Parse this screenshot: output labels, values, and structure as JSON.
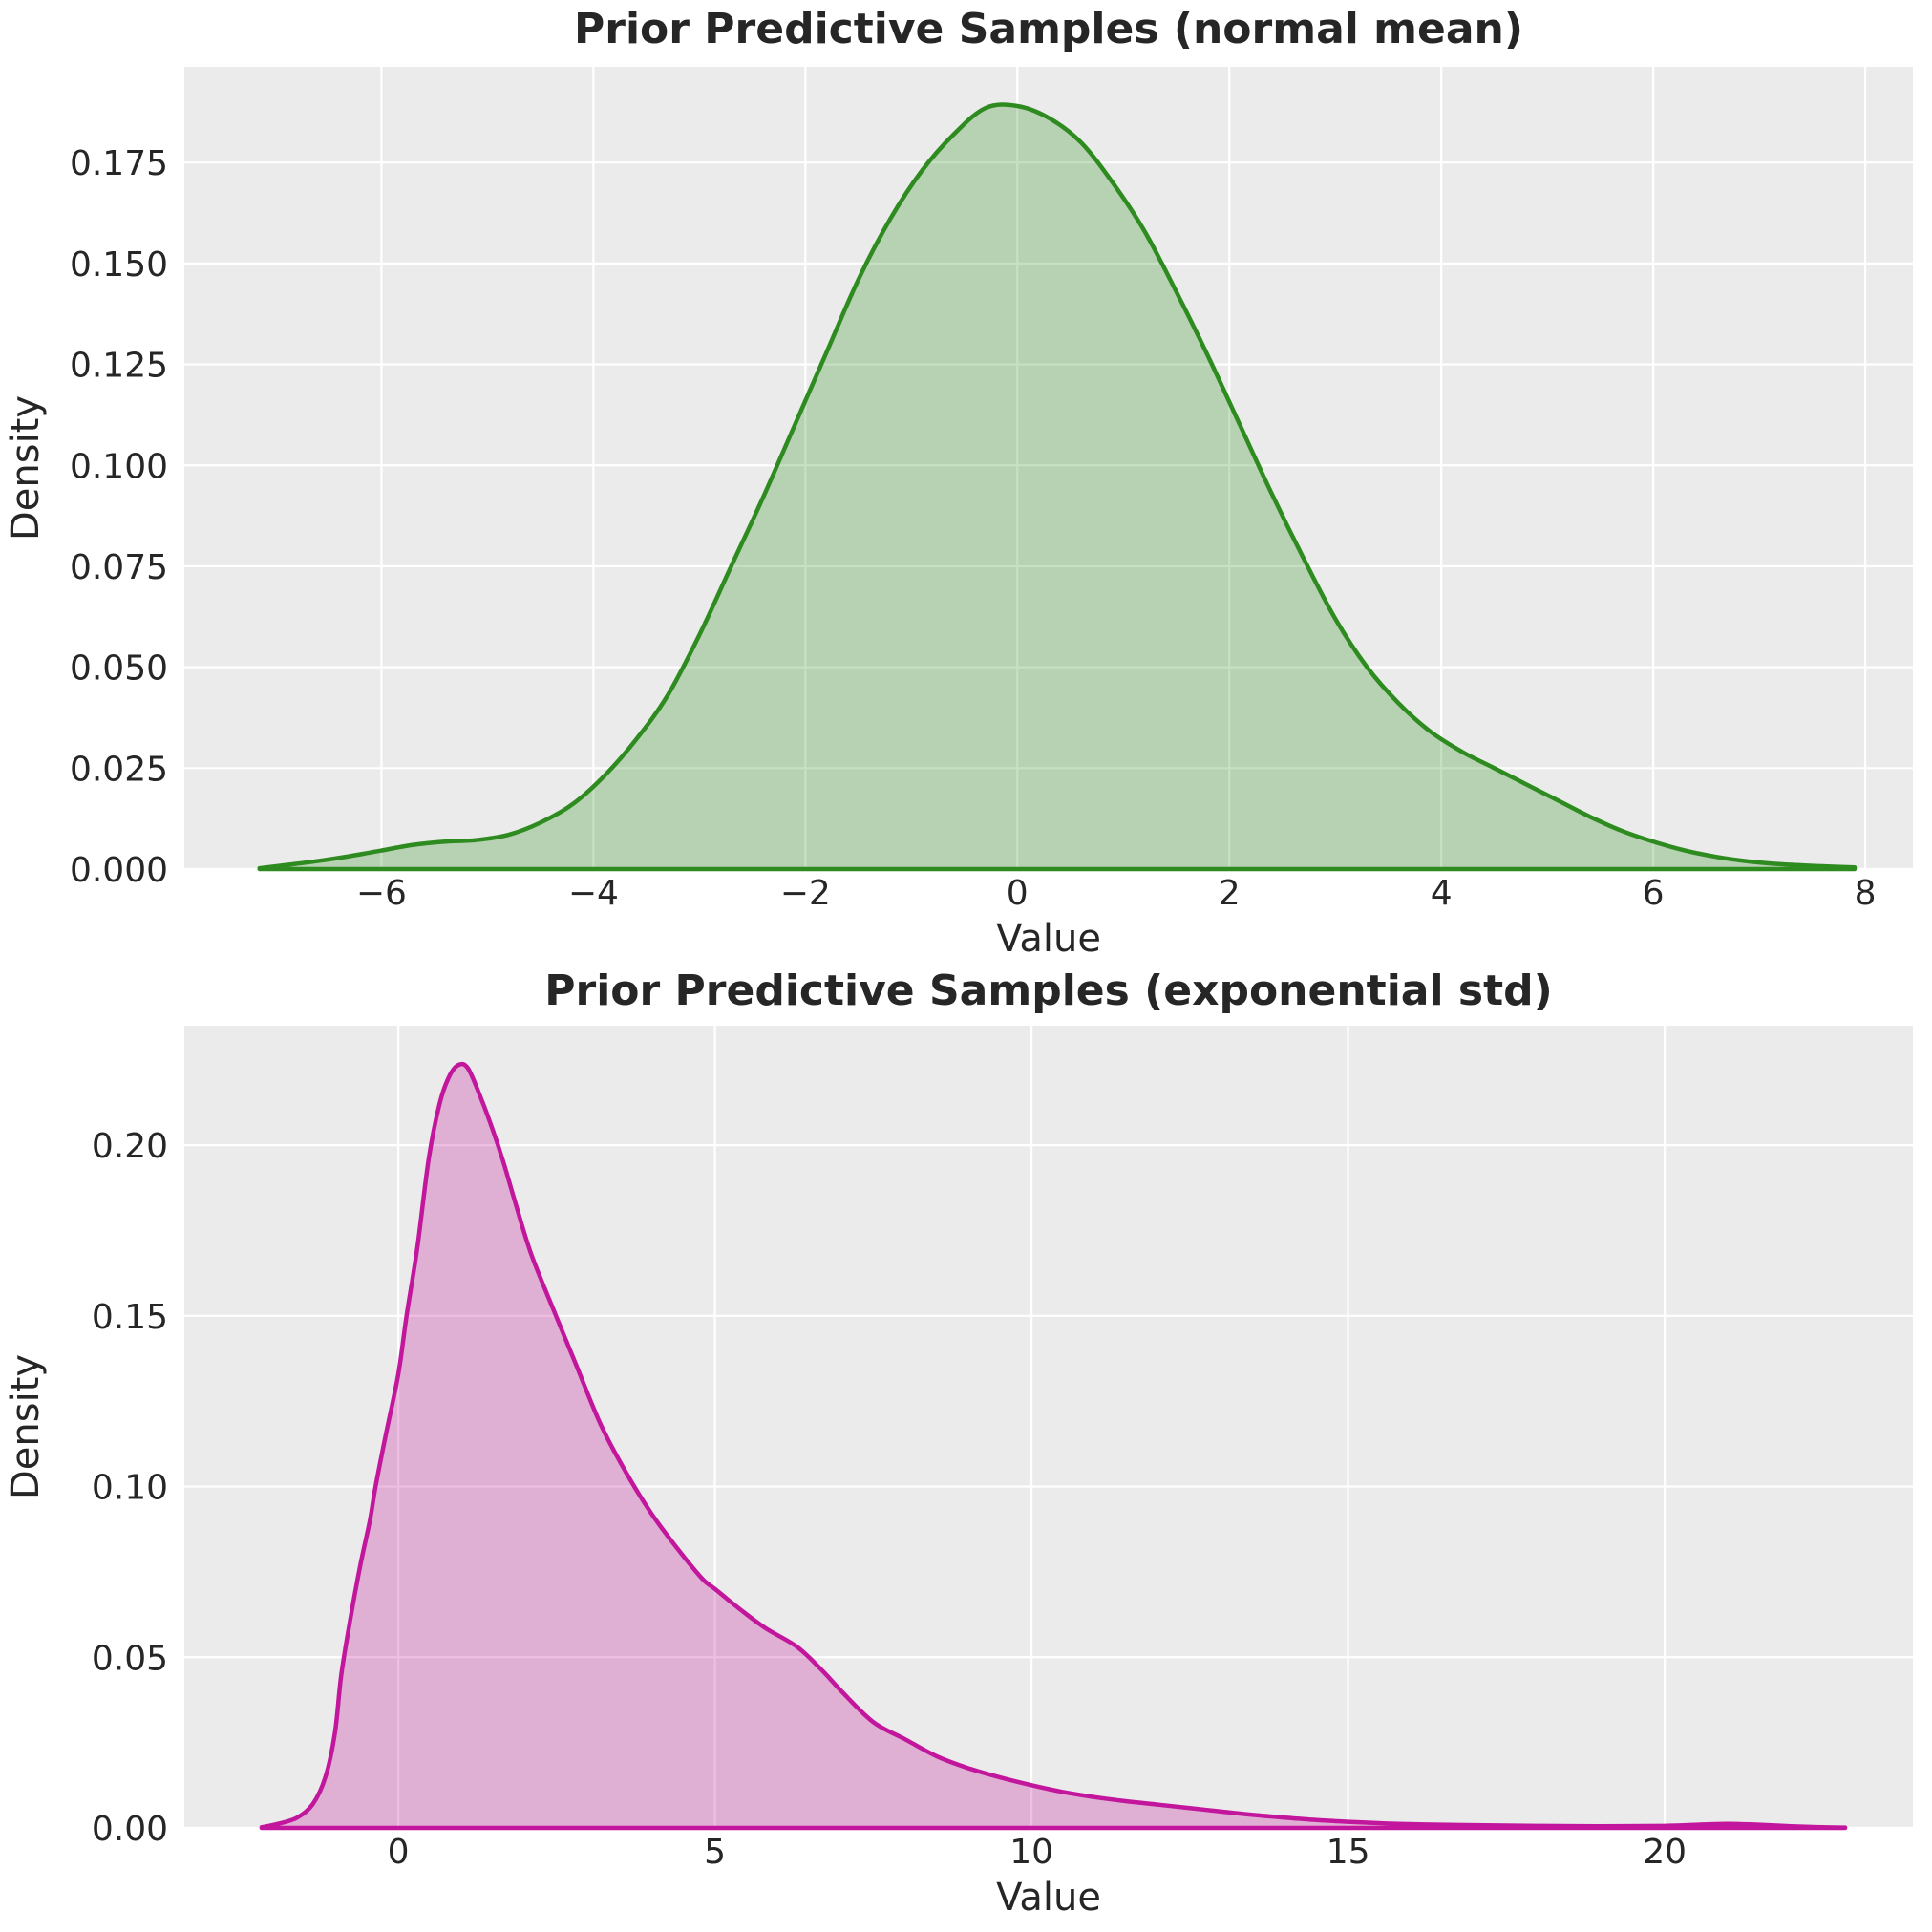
{
  "figure": {
    "background": "#ffffff",
    "axes_background": "#ebebeb",
    "grid_color": "#ffffff",
    "text_color": "#262626"
  },
  "chart_data": [
    {
      "type": "area",
      "kind": "kde-density",
      "title": "Prior Predictive Samples (normal mean)",
      "xlabel": "Value",
      "ylabel": "Density",
      "line_color": "#2e8b1f",
      "fill_color": "rgba(46,139,31,0.27)",
      "xlim": [
        -7.86,
        8.45
      ],
      "ylim": [
        0,
        0.1987
      ],
      "grid": true,
      "legend": "none",
      "xtick_values": [
        -6,
        -4,
        -2,
        0,
        2,
        4,
        6,
        8
      ],
      "xtick_labels": [
        "−6",
        "−4",
        "−2",
        "0",
        "2",
        "4",
        "6",
        "8"
      ],
      "ytick_values": [
        0.0,
        0.025,
        0.05,
        0.075,
        0.1,
        0.125,
        0.15,
        0.175
      ],
      "ytick_labels": [
        "0.000",
        "0.025",
        "0.050",
        "0.075",
        "0.100",
        "0.125",
        "0.150",
        "0.175"
      ],
      "peak": {
        "x": -0.2,
        "density": 0.189
      },
      "support": [
        -7.15,
        7.9
      ],
      "points": [
        [
          -7.15,
          0.0002
        ],
        [
          -6.9,
          0.001
        ],
        [
          -6.6,
          0.002
        ],
        [
          -6.3,
          0.0032
        ],
        [
          -6.0,
          0.0046
        ],
        [
          -5.7,
          0.006
        ],
        [
          -5.4,
          0.0068
        ],
        [
          -5.1,
          0.0072
        ],
        [
          -4.8,
          0.0085
        ],
        [
          -4.5,
          0.0115
        ],
        [
          -4.2,
          0.016
        ],
        [
          -3.9,
          0.023
        ],
        [
          -3.6,
          0.032
        ],
        [
          -3.3,
          0.043
        ],
        [
          -3.0,
          0.058
        ],
        [
          -2.7,
          0.075
        ],
        [
          -2.4,
          0.092
        ],
        [
          -2.1,
          0.11
        ],
        [
          -1.8,
          0.128
        ],
        [
          -1.5,
          0.146
        ],
        [
          -1.2,
          0.161
        ],
        [
          -0.9,
          0.173
        ],
        [
          -0.6,
          0.182
        ],
        [
          -0.3,
          0.1885
        ],
        [
          0.0,
          0.189
        ],
        [
          0.3,
          0.186
        ],
        [
          0.6,
          0.18
        ],
        [
          0.9,
          0.17
        ],
        [
          1.2,
          0.158
        ],
        [
          1.5,
          0.143
        ],
        [
          1.8,
          0.127
        ],
        [
          2.1,
          0.11
        ],
        [
          2.4,
          0.093
        ],
        [
          2.7,
          0.077
        ],
        [
          3.0,
          0.062
        ],
        [
          3.3,
          0.05
        ],
        [
          3.6,
          0.041
        ],
        [
          3.9,
          0.034
        ],
        [
          4.2,
          0.029
        ],
        [
          4.5,
          0.025
        ],
        [
          4.8,
          0.021
        ],
        [
          5.1,
          0.017
        ],
        [
          5.4,
          0.013
        ],
        [
          5.7,
          0.0095
        ],
        [
          6.0,
          0.0068
        ],
        [
          6.3,
          0.0046
        ],
        [
          6.6,
          0.003
        ],
        [
          6.9,
          0.0019
        ],
        [
          7.2,
          0.0012
        ],
        [
          7.5,
          0.0008
        ],
        [
          7.9,
          0.0004
        ]
      ]
    },
    {
      "type": "area",
      "kind": "kde-density",
      "title": "Prior Predictive Samples (exponential std)",
      "xlabel": "Value",
      "ylabel": "Density",
      "line_color": "#c2169c",
      "fill_color": "rgba(194,22,156,0.28)",
      "xlim": [
        -3.38,
        23.92
      ],
      "ylim": [
        0,
        0.235
      ],
      "grid": true,
      "legend": "none",
      "xtick_values": [
        0,
        5,
        10,
        15,
        20
      ],
      "xtick_labels": [
        "0",
        "5",
        "10",
        "15",
        "20"
      ],
      "ytick_values": [
        0.0,
        0.05,
        0.1,
        0.15,
        0.2
      ],
      "ytick_labels": [
        "0.00",
        "0.05",
        "0.10",
        "0.15",
        "0.20"
      ],
      "peak": {
        "x": 0.95,
        "density": 0.2235
      },
      "support": [
        -2.16,
        22.85
      ],
      "points": [
        [
          -2.16,
          0.0002
        ],
        [
          -1.9,
          0.0012
        ],
        [
          -1.6,
          0.003
        ],
        [
          -1.35,
          0.007
        ],
        [
          -1.15,
          0.015
        ],
        [
          -1.0,
          0.028
        ],
        [
          -0.9,
          0.045
        ],
        [
          -0.75,
          0.062
        ],
        [
          -0.6,
          0.077
        ],
        [
          -0.45,
          0.09
        ],
        [
          -0.36,
          0.1
        ],
        [
          -0.2,
          0.115
        ],
        [
          0.0,
          0.133
        ],
        [
          0.13,
          0.15
        ],
        [
          0.3,
          0.17
        ],
        [
          0.48,
          0.196
        ],
        [
          0.65,
          0.212
        ],
        [
          0.8,
          0.22
        ],
        [
          0.95,
          0.2235
        ],
        [
          1.1,
          0.2225
        ],
        [
          1.3,
          0.214
        ],
        [
          1.5,
          0.204
        ],
        [
          1.66,
          0.195
        ],
        [
          1.85,
          0.183
        ],
        [
          2.1,
          0.168
        ],
        [
          2.49,
          0.15
        ],
        [
          2.8,
          0.136
        ],
        [
          3.2,
          0.118
        ],
        [
          3.6,
          0.104
        ],
        [
          4.0,
          0.092
        ],
        [
          4.4,
          0.082
        ],
        [
          4.8,
          0.073
        ],
        [
          5.0,
          0.07
        ],
        [
          5.4,
          0.064
        ],
        [
          5.8,
          0.0585
        ],
        [
          6.3,
          0.053
        ],
        [
          6.7,
          0.046
        ],
        [
          7.0,
          0.04
        ],
        [
          7.5,
          0.031
        ],
        [
          8.0,
          0.026
        ],
        [
          8.5,
          0.021
        ],
        [
          9.0,
          0.0175
        ],
        [
          9.5,
          0.0148
        ],
        [
          10.0,
          0.0125
        ],
        [
          10.5,
          0.0105
        ],
        [
          11.0,
          0.009
        ],
        [
          11.5,
          0.0078
        ],
        [
          12.0,
          0.0068
        ],
        [
          12.5,
          0.0058
        ],
        [
          13.0,
          0.0048
        ],
        [
          13.5,
          0.0038
        ],
        [
          14.0,
          0.003
        ],
        [
          14.5,
          0.0023
        ],
        [
          15.0,
          0.0018
        ],
        [
          15.6,
          0.0013
        ],
        [
          16.2,
          0.001
        ],
        [
          17.0,
          0.0008
        ],
        [
          18.0,
          0.0006
        ],
        [
          19.0,
          0.0005
        ],
        [
          20.0,
          0.0006
        ],
        [
          20.6,
          0.001
        ],
        [
          21.0,
          0.0012
        ],
        [
          21.4,
          0.001
        ],
        [
          22.0,
          0.0005
        ],
        [
          22.5,
          0.0002
        ],
        [
          22.85,
          0.0001
        ]
      ]
    }
  ]
}
